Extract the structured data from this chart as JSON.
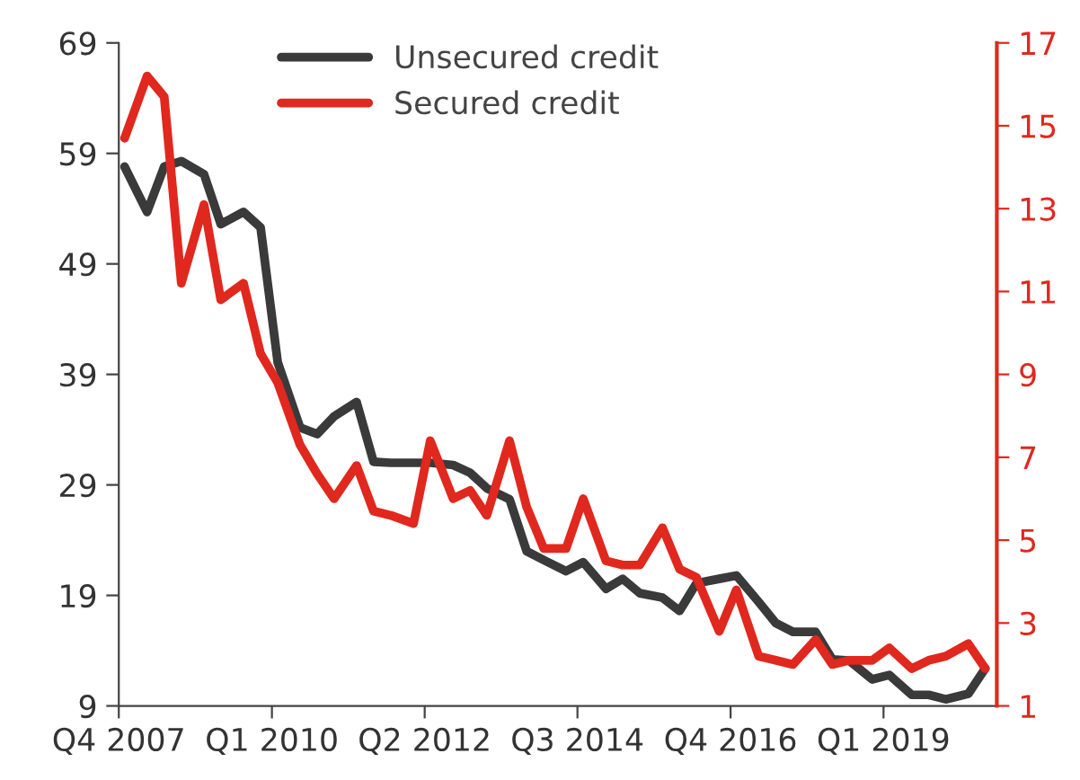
{
  "chart_data": {
    "type": "line",
    "x": [
      "2007-11",
      "2008-03",
      "2008-06",
      "2008-09",
      "2009-01",
      "2009-04",
      "2009-08",
      "2009-11",
      "2010-02",
      "2010-06",
      "2010-09",
      "2010-12",
      "2011-04",
      "2011-07",
      "2011-10",
      "2012-02",
      "2012-05",
      "2012-09",
      "2012-12",
      "2013-03",
      "2013-07",
      "2013-10",
      "2014-01",
      "2014-05",
      "2014-08",
      "2014-12",
      "2015-03",
      "2015-06",
      "2015-10",
      "2016-01",
      "2016-04",
      "2016-08",
      "2016-11",
      "2017-03",
      "2017-06",
      "2017-09",
      "2018-01",
      "2018-04",
      "2018-07",
      "2018-11",
      "2019-02",
      "2019-06",
      "2019-09",
      "2019-12",
      "2020-04",
      "2020-07"
    ],
    "series": [
      {
        "name": "Unsecured credit",
        "color": "#3a3a3a",
        "values": [
          57.8,
          53.7,
          57.8,
          58.3,
          57.1,
          52.6,
          53.7,
          52.3,
          40.1,
          34.2,
          33.6,
          35.2,
          36.5,
          31.1,
          31.0,
          31.0,
          31.0,
          30.8,
          30.1,
          28.7,
          27.7,
          23.0,
          22.2,
          21.2,
          22.0,
          19.6,
          20.5,
          19.2,
          18.8,
          17.6,
          20.1,
          20.5,
          20.8,
          18.4,
          16.5,
          15.7,
          15.7,
          13.2,
          13.1,
          11.4,
          11.8,
          10.0,
          10.0,
          9.6,
          10.1,
          12.4
        ]
      },
      {
        "name": "Secured credit",
        "color": "#e0281e",
        "axis": "y2",
        "values": [
          14.7,
          16.2,
          15.7,
          11.2,
          13.1,
          10.8,
          11.2,
          9.5,
          8.8,
          7.3,
          6.6,
          6.0,
          6.8,
          5.7,
          5.6,
          5.4,
          7.4,
          6.0,
          6.2,
          5.6,
          7.4,
          5.8,
          4.8,
          4.8,
          6.0,
          4.5,
          4.4,
          4.4,
          5.3,
          4.3,
          4.1,
          2.8,
          3.8,
          2.2,
          2.1,
          2.0,
          2.6,
          2.0,
          2.1,
          2.1,
          2.4,
          1.9,
          2.1,
          2.2,
          2.5,
          1.9
        ]
      }
    ],
    "xlim": [
      "2007-10",
      "2020-09"
    ],
    "xticks": [
      {
        "value": "2007-10",
        "label": "Q4 2007"
      },
      {
        "value": "2010-01",
        "label": "Q1 2010"
      },
      {
        "value": "2012-04",
        "label": "Q2 2012"
      },
      {
        "value": "2014-07",
        "label": "Q3 2014"
      },
      {
        "value": "2016-10",
        "label": "Q4 2016"
      },
      {
        "value": "2019-01",
        "label": "Q1 2019"
      }
    ],
    "ylim": [
      9,
      69
    ],
    "yticks": [
      9,
      19,
      29,
      39,
      49,
      59,
      69
    ],
    "y2lim": [
      1,
      17
    ],
    "y2ticks": [
      1,
      3,
      5,
      7,
      9,
      11,
      13,
      15,
      17
    ],
    "grid": false,
    "legend": "top",
    "marker": "none",
    "line_style": "solid"
  }
}
